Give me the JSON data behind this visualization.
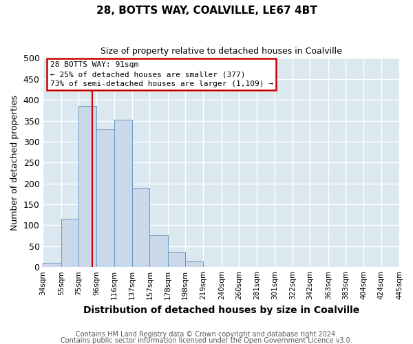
{
  "title": "28, BOTTS WAY, COALVILLE, LE67 4BT",
  "subtitle": "Size of property relative to detached houses in Coalville",
  "xlabel": "Distribution of detached houses by size in Coalville",
  "ylabel": "Number of detached properties",
  "bar_values": [
    10,
    115,
    385,
    330,
    353,
    190,
    76,
    37,
    13,
    0,
    0,
    1,
    0,
    0,
    0,
    1,
    0,
    0,
    0,
    1
  ],
  "bin_edges": [
    34,
    55,
    75,
    96,
    116,
    137,
    157,
    178,
    198,
    219,
    240,
    260,
    281,
    301,
    322,
    342,
    363,
    383,
    404,
    424,
    445
  ],
  "tick_labels": [
    "34sqm",
    "55sqm",
    "75sqm",
    "96sqm",
    "116sqm",
    "137sqm",
    "157sqm",
    "178sqm",
    "198sqm",
    "219sqm",
    "240sqm",
    "260sqm",
    "281sqm",
    "301sqm",
    "322sqm",
    "342sqm",
    "363sqm",
    "383sqm",
    "404sqm",
    "424sqm",
    "445sqm"
  ],
  "bar_color": "#c9d9ea",
  "bar_edge_color": "#6899c0",
  "bar_edge_width": 0.7,
  "vline_x": 91,
  "vline_color": "#cc0000",
  "ylim": [
    0,
    500
  ],
  "yticks": [
    0,
    50,
    100,
    150,
    200,
    250,
    300,
    350,
    400,
    450,
    500
  ],
  "annotation_text": "28 BOTTS WAY: 91sqm\n← 25% of detached houses are smaller (377)\n73% of semi-detached houses are larger (1,109) →",
  "annotation_box_color": "#ffffff",
  "annotation_box_edge": "#cc0000",
  "footer1": "Contains HM Land Registry data © Crown copyright and database right 2024.",
  "footer2": "Contains public sector information licensed under the Open Government Licence v3.0.",
  "plot_bg_color": "#dce8f0",
  "fig_bg_color": "#ffffff",
  "grid_color": "#ffffff",
  "figsize": [
    6.0,
    5.0
  ],
  "dpi": 100
}
